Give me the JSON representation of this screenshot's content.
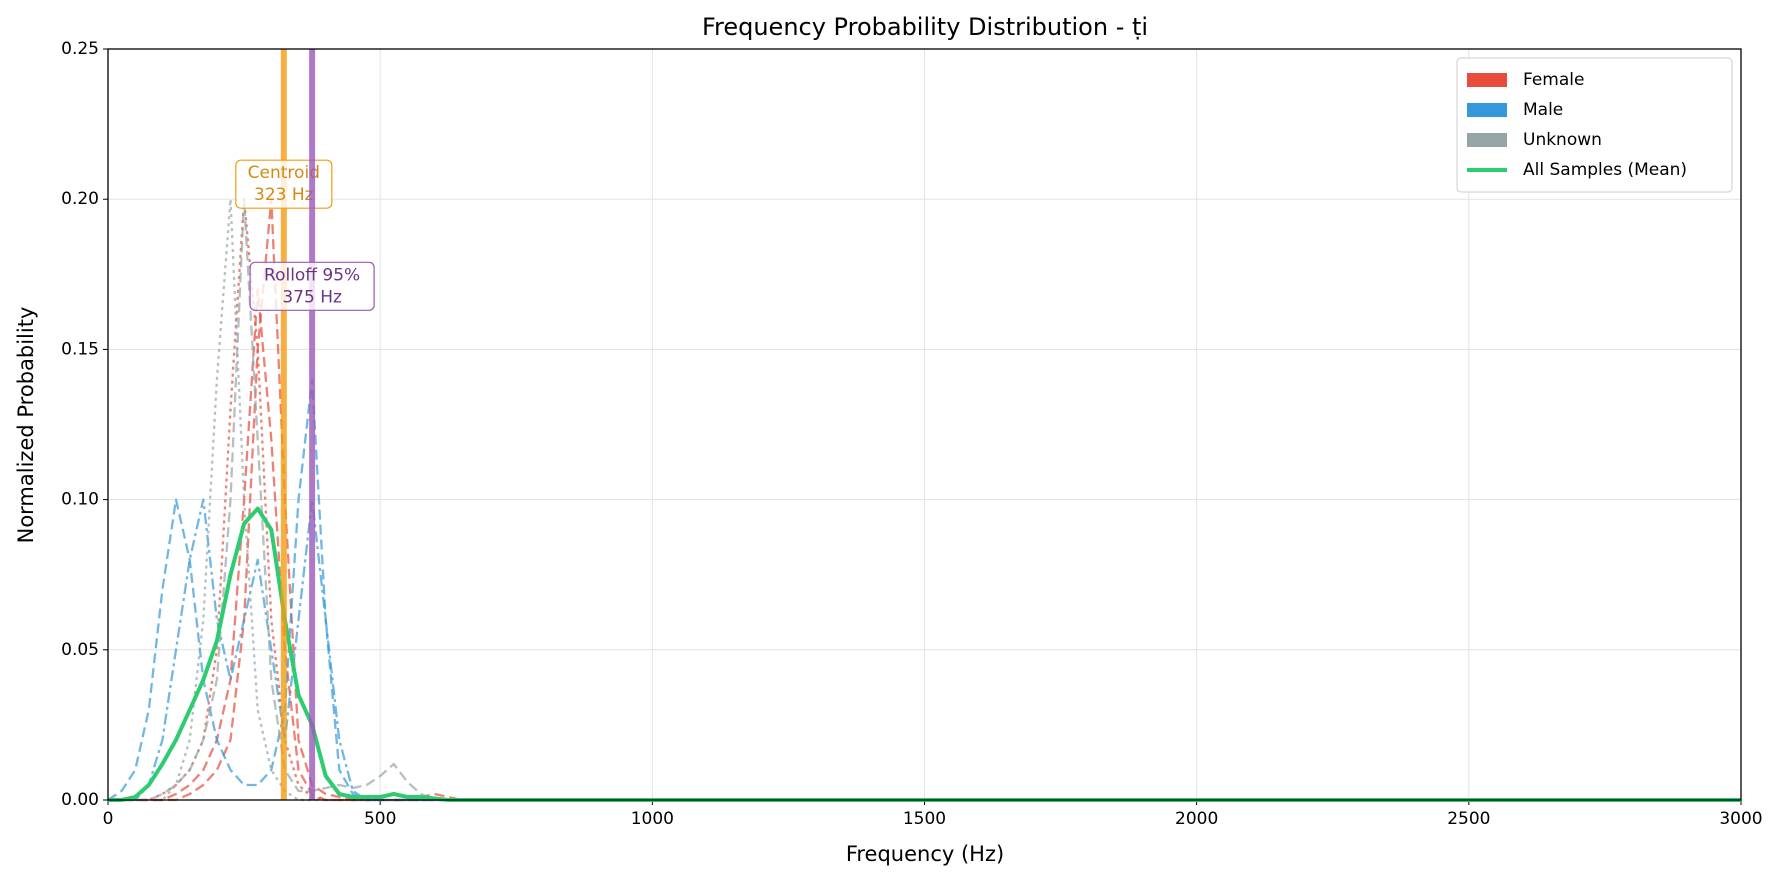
{
  "chart_data": {
    "type": "line",
    "title": "Frequency Probability Distribution - ṭi",
    "x_label": "Frequency (Hz)",
    "y_label": "Normalized Probability",
    "x": [
      0,
      25,
      50,
      75,
      100,
      125,
      150,
      175,
      200,
      225,
      250,
      275,
      300,
      325,
      350,
      375,
      400,
      425,
      450,
      475,
      500,
      525,
      550,
      575,
      600,
      625,
      650,
      675,
      700,
      1000,
      1500,
      2000,
      2500,
      3000
    ],
    "xlim": [
      0,
      3000
    ],
    "xticks": [
      0,
      500,
      1000,
      1500,
      2000,
      2500,
      3000
    ],
    "ylim": [
      0,
      0.25
    ],
    "yticks": [
      {
        "value": 0,
        "label": "0.00"
      },
      {
        "value": 0.05,
        "label": "0.05"
      },
      {
        "value": 0.1,
        "label": "0.10"
      },
      {
        "value": 0.15,
        "label": "0.15"
      },
      {
        "value": 0.2,
        "label": "0.20"
      },
      {
        "value": 0.25,
        "label": "0.25"
      }
    ],
    "grid": true,
    "legend_loc": "upper right",
    "legend_groups": [
      {
        "name": "Female",
        "color": "#e74c3c"
      },
      {
        "name": "Male",
        "color": "#3498db"
      },
      {
        "name": "Unknown",
        "color": "#95a5a6"
      }
    ],
    "series": [
      {
        "color": "#e74c3c",
        "dash": "dashed",
        "values": [
          0,
          0,
          0,
          0,
          0,
          0,
          0.002,
          0.005,
          0.01,
          0.02,
          0.06,
          0.15,
          0.2,
          0.1,
          0.02,
          0.005,
          0.002,
          0.001,
          0,
          0,
          0,
          0,
          0,
          0.001,
          0.002,
          0.001,
          0,
          0,
          0,
          0,
          0,
          0,
          0,
          0
        ]
      },
      {
        "color": "#e74c3c",
        "dash": "dotted",
        "values": [
          0,
          0,
          0,
          0,
          0.002,
          0.005,
          0.01,
          0.02,
          0.05,
          0.13,
          0.2,
          0.15,
          0.06,
          0.02,
          0.005,
          0.001,
          0,
          0,
          0,
          0,
          0,
          0,
          0,
          0,
          0,
          0,
          0,
          0,
          0,
          0,
          0,
          0,
          0,
          0
        ]
      },
      {
        "color": "#e74c3c",
        "dash": "dashed",
        "values": [
          0,
          0,
          0,
          0,
          0,
          0.002,
          0.005,
          0.01,
          0.02,
          0.04,
          0.1,
          0.17,
          0.12,
          0.05,
          0.01,
          0.002,
          0,
          0,
          0,
          0,
          0,
          0,
          0,
          0,
          0,
          0,
          0,
          0,
          0,
          0,
          0,
          0,
          0,
          0
        ]
      },
      {
        "color": "#3498db",
        "dash": "dashed",
        "values": [
          0,
          0.003,
          0.01,
          0.03,
          0.07,
          0.1,
          0.08,
          0.04,
          0.02,
          0.01,
          0.005,
          0.005,
          0.01,
          0.03,
          0.1,
          0.14,
          0.06,
          0.01,
          0.002,
          0,
          0,
          0,
          0,
          0,
          0,
          0,
          0,
          0,
          0,
          0,
          0,
          0,
          0,
          0
        ]
      },
      {
        "color": "#3498db",
        "dash": "dashdot",
        "values": [
          0,
          0,
          0,
          0.005,
          0.02,
          0.05,
          0.08,
          0.1,
          0.06,
          0.04,
          0.06,
          0.08,
          0.05,
          0.02,
          0.06,
          0.1,
          0.06,
          0.02,
          0.003,
          0,
          0,
          0,
          0,
          0,
          0,
          0,
          0,
          0,
          0,
          0,
          0,
          0,
          0,
          0
        ]
      },
      {
        "color": "#95a5a6",
        "dash": "dashed",
        "values": [
          0,
          0,
          0,
          0,
          0.002,
          0.005,
          0.01,
          0.02,
          0.04,
          0.1,
          0.2,
          0.12,
          0.04,
          0.01,
          0.003,
          0.003,
          0.004,
          0.005,
          0.004,
          0.005,
          0.008,
          0.012,
          0.006,
          0.002,
          0,
          0,
          0,
          0,
          0,
          0,
          0,
          0,
          0,
          0
        ]
      },
      {
        "color": "#95a5a6",
        "dash": "dotted",
        "values": [
          0,
          0,
          0,
          0,
          0,
          0.005,
          0.02,
          0.06,
          0.14,
          0.2,
          0.1,
          0.03,
          0.01,
          0.003,
          0,
          0,
          0,
          0,
          0,
          0,
          0,
          0,
          0,
          0,
          0,
          0,
          0,
          0,
          0,
          0,
          0,
          0,
          0,
          0
        ]
      },
      {
        "name": "All Samples (Mean)",
        "color": "#2ecc71",
        "dash": "solid",
        "values": [
          0,
          0,
          0.001,
          0.005,
          0.012,
          0.02,
          0.03,
          0.04,
          0.053,
          0.075,
          0.092,
          0.097,
          0.09,
          0.06,
          0.035,
          0.025,
          0.008,
          0.002,
          0.001,
          0.001,
          0.001,
          0.002,
          0.001,
          0.001,
          0.0005,
          0,
          0,
          0,
          0,
          0,
          0,
          0,
          0,
          0
        ]
      }
    ],
    "annotations": [
      {
        "label": "Centroid",
        "value_label": "323 Hz",
        "x": 323,
        "color": "#f39c12",
        "text_color": "#d68910"
      },
      {
        "label": "Rolloff 95%",
        "value_label": "375 Hz",
        "x": 375,
        "color": "#9b59b6",
        "text_color": "#6c3483"
      }
    ]
  }
}
